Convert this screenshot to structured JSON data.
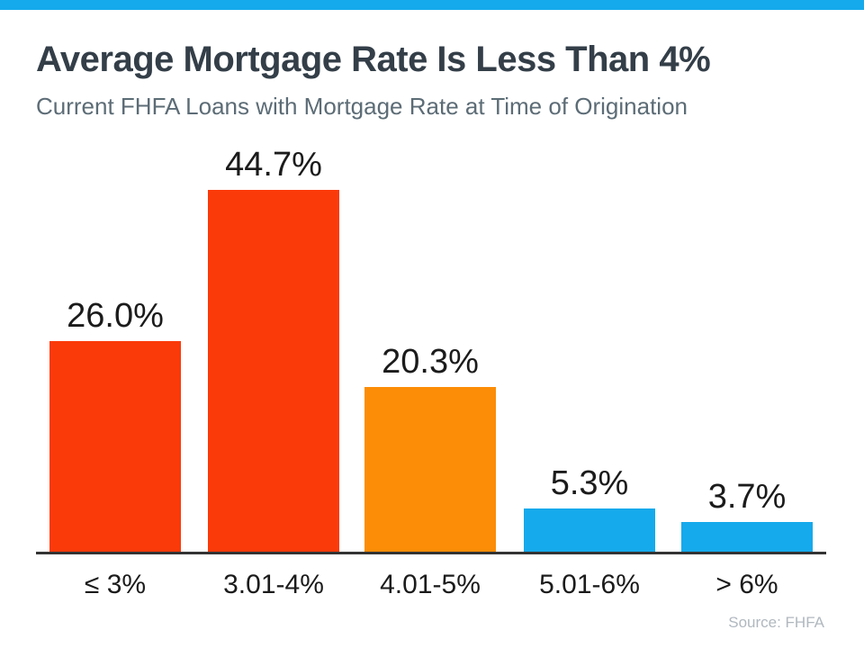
{
  "page": {
    "title": "Average Mortgage Rate Is Less Than 4%",
    "subtitle": "Current FHFA Loans with Mortgage Rate at Time of Origination",
    "source": "Source: FHFA"
  },
  "colors": {
    "accent_bar": "#15AAEC",
    "red": "#FB3A09",
    "orange": "#FC8D06",
    "blue": "#15AAEC",
    "title_text": "#333E48",
    "subtitle_text": "#5C6C76",
    "label_text": "#1B1B1B",
    "source_text": "#B0B8BF",
    "axis": "#333333"
  },
  "chart_data": {
    "type": "bar",
    "title": "Average Mortgage Rate Is Less Than 4%",
    "subtitle": "Current FHFA Loans with Mortgage Rate at Time of Origination",
    "categories": [
      "≤ 3%",
      "3.01-4%",
      "4.01-5%",
      "5.01-6%",
      "> 6%"
    ],
    "values": [
      26.0,
      44.7,
      20.3,
      5.3,
      3.7
    ],
    "value_labels": [
      "26.0%",
      "44.7%",
      "20.3%",
      "5.3%",
      "3.7%"
    ],
    "bar_colors": [
      "#FB3A09",
      "#FB3A09",
      "#FC8D06",
      "#15AAEC",
      "#15AAEC"
    ],
    "xlabel": "",
    "ylabel": "",
    "ylim": [
      0,
      50
    ],
    "grid": false,
    "legend": false,
    "source": "Source: FHFA"
  }
}
